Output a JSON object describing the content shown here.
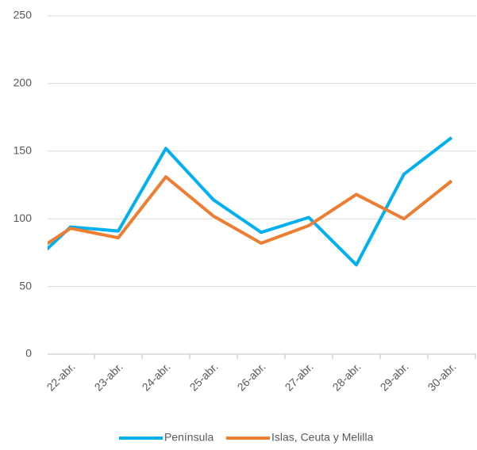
{
  "chart_data": {
    "type": "line",
    "categories": [
      null,
      "22-abr.",
      "23-abr.",
      "24-abr.",
      "25-abr.",
      "26-abr.",
      "27-abr.",
      "28-abr.",
      "29-abr.",
      "30-abr."
    ],
    "series": [
      {
        "name": "Península",
        "color": "#00b0f0",
        "values": [
          61,
          94,
          91,
          152,
          114,
          90,
          101,
          66,
          133,
          160
        ]
      },
      {
        "name": "Islas, Ceuta y Melilla",
        "color": "#ed7d31",
        "values": [
          70,
          93,
          86,
          131,
          102,
          82,
          95,
          118,
          100,
          128
        ]
      }
    ],
    "ylim": [
      0,
      250
    ],
    "yticks": [
      0,
      50,
      100,
      150,
      200,
      250
    ],
    "grid": true,
    "legend": "bottom"
  }
}
